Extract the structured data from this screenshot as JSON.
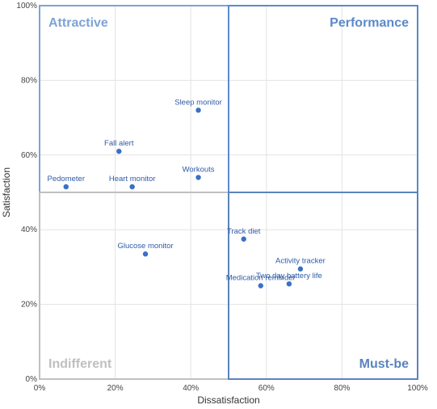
{
  "chart_data": {
    "type": "scatter",
    "xlabel": "Dissatisfaction",
    "ylabel": "Satisfaction",
    "xlim": [
      0,
      100
    ],
    "ylim": [
      0,
      100
    ],
    "x_ticks": [
      "0%",
      "20%",
      "40%",
      "60%",
      "80%",
      "100%"
    ],
    "y_ticks": [
      "0%",
      "20%",
      "40%",
      "60%",
      "80%",
      "100%"
    ],
    "grid": true,
    "quadrant_split": {
      "x": 50,
      "y": 50
    },
    "quadrants": [
      {
        "label": "Attractive",
        "color": "#7ea3d6"
      },
      {
        "label": "Performance",
        "color": "#5b8ac9"
      },
      {
        "label": "Indifferent",
        "color": "#c0c0c0"
      },
      {
        "label": "Must-be",
        "color": "#5a84bd"
      }
    ],
    "point_color": "#3a70c6",
    "points": [
      {
        "label": "Sleep monitor",
        "x": 42,
        "y": 72
      },
      {
        "label": "Fall alert",
        "x": 21,
        "y": 61
      },
      {
        "label": "Workouts",
        "x": 42,
        "y": 54
      },
      {
        "label": "Pedometer",
        "x": 7,
        "y": 51.5
      },
      {
        "label": "Heart monitor",
        "x": 24.5,
        "y": 51.5
      },
      {
        "label": "Track diet",
        "x": 54,
        "y": 37.5
      },
      {
        "label": "Glucose monitor",
        "x": 28,
        "y": 33.5
      },
      {
        "label": "Activity tracker",
        "x": 69,
        "y": 29.5
      },
      {
        "label": "Two day battery life",
        "x": 66,
        "y": 25.5
      },
      {
        "label": "Medication reminder",
        "x": 58.5,
        "y": 25
      }
    ]
  }
}
